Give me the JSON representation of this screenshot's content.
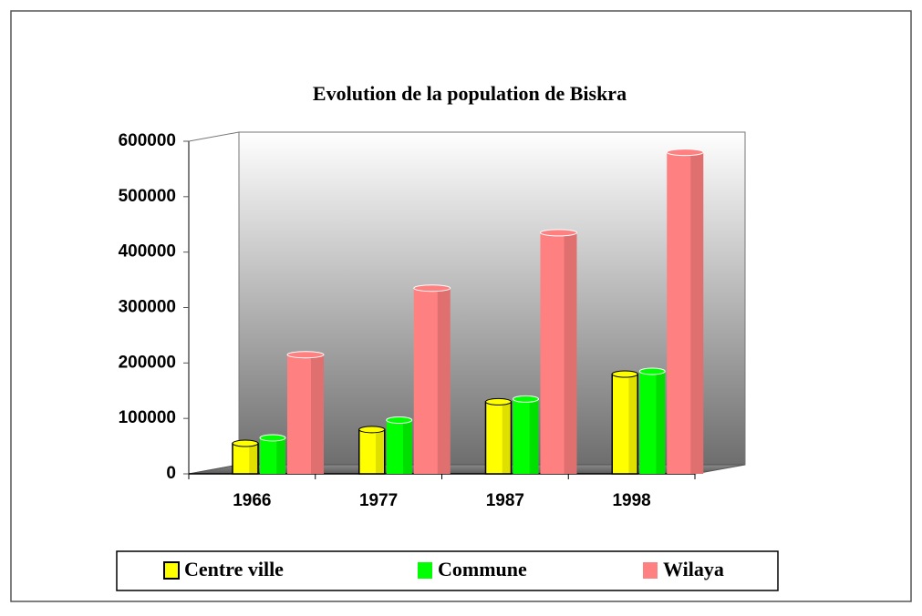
{
  "chart_data": {
    "type": "bar3d",
    "title": "Evolution de la population de Biskra",
    "categories": [
      "1966",
      "1977",
      "1987",
      "1998"
    ],
    "series": [
      {
        "name": "Centre ville",
        "color": "#ffff00",
        "values": [
          55000,
          80000,
          130000,
          180000
        ]
      },
      {
        "name": "Commune",
        "color": "#00ff00",
        "values": [
          65000,
          97000,
          135000,
          185000
        ]
      },
      {
        "name": "Wilaya",
        "color": "#ff8080",
        "values": [
          215000,
          335000,
          435000,
          580000
        ]
      }
    ],
    "ylim": [
      0,
      600000
    ],
    "yticks": [
      0,
      100000,
      200000,
      300000,
      400000,
      500000,
      600000
    ]
  }
}
